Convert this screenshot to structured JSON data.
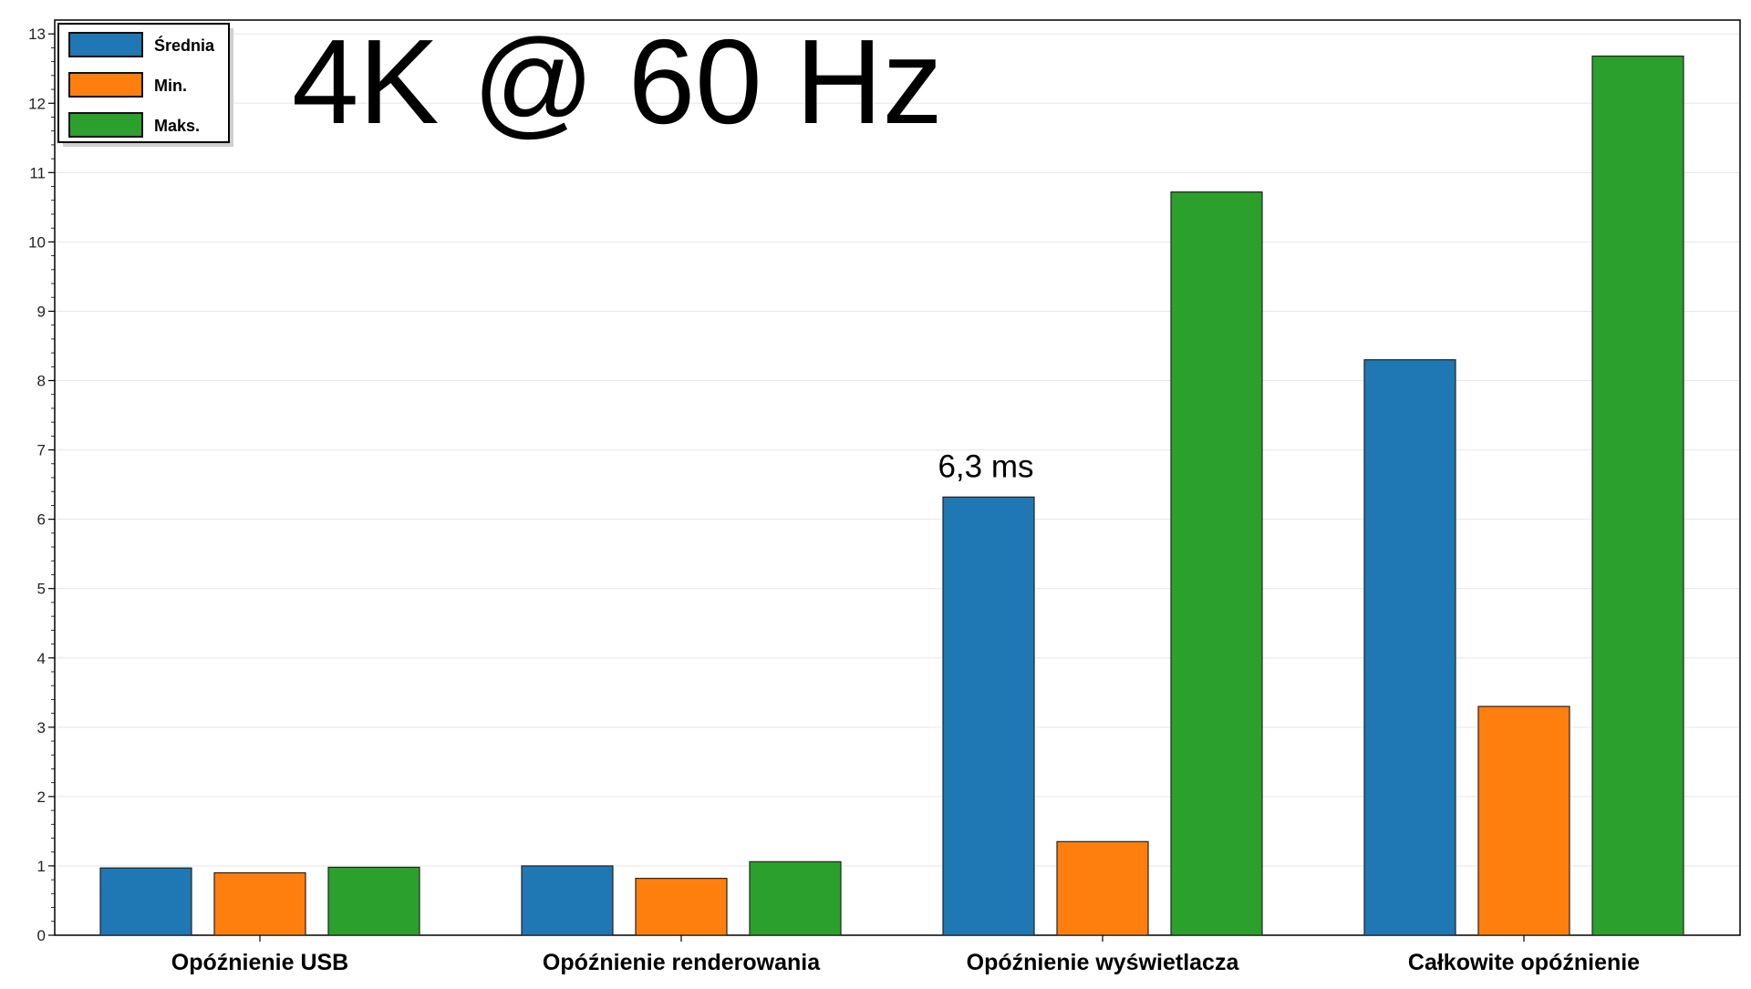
{
  "chart_data": {
    "type": "bar",
    "title": "4K @ 60 Hz",
    "xlabel": "",
    "ylabel": "",
    "ylim": [
      0,
      13.2
    ],
    "yticks": [
      0,
      1,
      2,
      3,
      4,
      5,
      6,
      7,
      8,
      9,
      10,
      11,
      12,
      13
    ],
    "grid": true,
    "legend_position": "top-left",
    "categories": [
      "Opóźnienie USB",
      "Opóźnienie renderowania",
      "Opóźnienie wyświetlacza",
      "Całkowite opóźnienie"
    ],
    "series": [
      {
        "name": "Średnia",
        "color": "#1f77b4",
        "values": [
          0.97,
          1.0,
          6.32,
          8.3
        ]
      },
      {
        "name": "Min.",
        "color": "#ff7f0e",
        "values": [
          0.9,
          0.82,
          1.35,
          3.3
        ]
      },
      {
        "name": "Maks.",
        "color": "#2ca02c",
        "values": [
          0.98,
          1.06,
          10.72,
          12.68
        ]
      }
    ],
    "annotations": [
      {
        "text": "6,3 ms",
        "category_index": 2,
        "series_index": 0
      }
    ]
  }
}
